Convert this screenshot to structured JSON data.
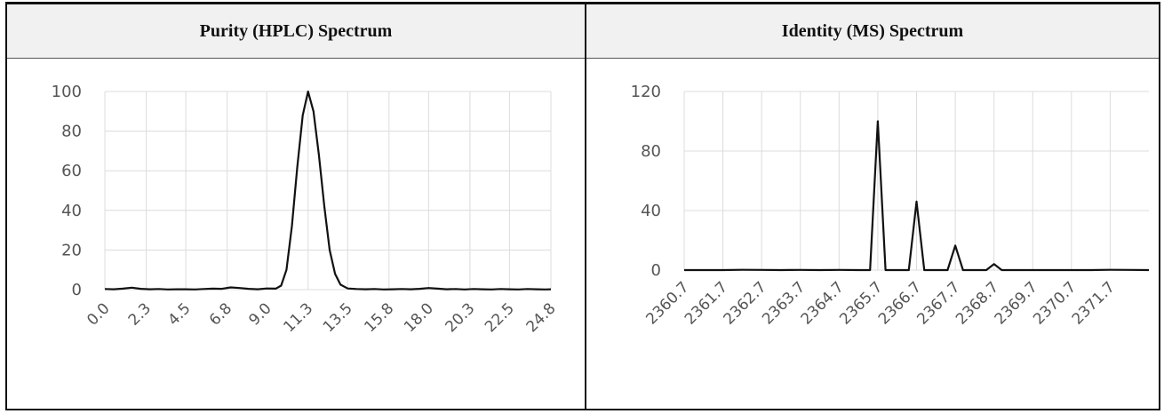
{
  "panels": {
    "left_title": "Purity (HPLC) Spectrum",
    "right_title": "Identity (MS) Spectrum"
  },
  "chart_data": [
    {
      "type": "line",
      "title": "Purity (HPLC) Spectrum",
      "xlabel": "",
      "ylabel": "",
      "ylim": [
        0,
        100
      ],
      "yticks": [
        0,
        20,
        40,
        60,
        80,
        100
      ],
      "xlim": [
        0,
        24.8
      ],
      "xticks": [
        "0.0",
        "2.3",
        "4.5",
        "6.8",
        "9.0",
        "11.3",
        "13.5",
        "15.8",
        "18.0",
        "20.3",
        "22.5",
        "24.8"
      ],
      "grid": true,
      "series": [
        {
          "x": [
            0.0,
            0.5,
            1.0,
            1.5,
            2.0,
            2.5,
            3.0,
            3.5,
            4.0,
            4.5,
            5.0,
            5.5,
            6.0,
            6.5,
            7.0,
            7.5,
            8.0,
            8.5,
            9.0,
            9.5,
            9.8,
            10.1,
            10.4,
            10.7,
            11.0,
            11.3,
            11.6,
            11.9,
            12.2,
            12.5,
            12.8,
            13.1,
            13.5,
            14.0,
            14.5,
            15.0,
            15.5,
            16.0,
            16.5,
            17.0,
            17.5,
            18.0,
            18.5,
            19.0,
            19.5,
            20.0,
            20.5,
            21.0,
            21.5,
            22.0,
            22.5,
            23.0,
            23.5,
            24.0,
            24.5,
            24.8
          ],
          "y": [
            0.3,
            0.2,
            0.5,
            1.0,
            0.4,
            0.2,
            0.3,
            0.1,
            0.2,
            0.2,
            0.1,
            0.3,
            0.5,
            0.4,
            1.1,
            0.8,
            0.4,
            0.2,
            0.6,
            0.5,
            2.0,
            10.0,
            32.0,
            62.0,
            88.0,
            100.0,
            90.0,
            68.0,
            42.0,
            20.0,
            8.0,
            2.5,
            0.6,
            0.3,
            0.2,
            0.3,
            0.1,
            0.2,
            0.3,
            0.2,
            0.4,
            0.8,
            0.5,
            0.2,
            0.3,
            0.1,
            0.3,
            0.2,
            0.1,
            0.3,
            0.2,
            0.1,
            0.3,
            0.2,
            0.1,
            0.2
          ]
        }
      ]
    },
    {
      "type": "line",
      "title": "Identity (MS) Spectrum",
      "xlabel": "",
      "ylabel": "",
      "ylim": [
        0,
        120
      ],
      "yticks": [
        0,
        40,
        80,
        120
      ],
      "xlim": [
        2360.7,
        2372.7
      ],
      "xticks": [
        "2360.7",
        "2361.7",
        "2362.7",
        "2363.7",
        "2364.7",
        "2365.7",
        "2366.7",
        "2367.7",
        "2368.7",
        "2369.7",
        "2370.7",
        "2371.7"
      ],
      "grid": true,
      "series": [
        {
          "x": [
            2360.7,
            2361.2,
            2361.7,
            2362.2,
            2362.7,
            2363.2,
            2363.7,
            2364.2,
            2364.7,
            2365.2,
            2365.5,
            2365.7,
            2365.9,
            2366.2,
            2366.5,
            2366.7,
            2366.9,
            2367.2,
            2367.5,
            2367.7,
            2367.9,
            2368.2,
            2368.5,
            2368.7,
            2368.9,
            2369.2,
            2369.7,
            2370.2,
            2370.7,
            2371.2,
            2371.7,
            2372.2,
            2372.7
          ],
          "y": [
            0,
            0,
            0,
            0.2,
            0.1,
            0,
            0.1,
            0,
            0.1,
            0,
            0,
            100,
            0,
            0,
            0,
            46,
            0,
            0,
            0,
            16.5,
            0,
            0,
            0,
            4,
            0,
            0,
            0,
            0,
            0,
            0,
            0.2,
            0.1,
            0
          ]
        }
      ]
    }
  ]
}
